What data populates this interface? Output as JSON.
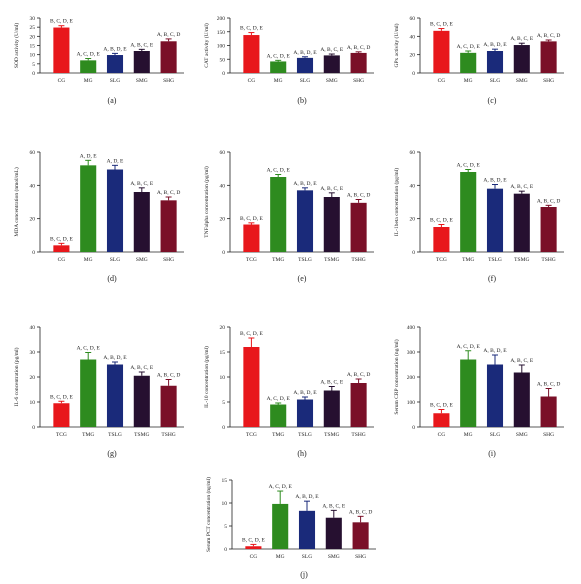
{
  "colors": {
    "CG": "#e8171b",
    "MG": "#2e8b1f",
    "SLG": "#1a2a7a",
    "SMG": "#261030",
    "SHG": "#7a1028"
  },
  "chart_data": [
    {
      "id": "a",
      "type": "bar",
      "panel_label": "(a)",
      "ylabel": "SOD activity (U/ml)",
      "ylim": [
        0,
        30
      ],
      "ticks": [
        0,
        5,
        10,
        15,
        20,
        25,
        30
      ],
      "categories": [
        "CG",
        "MG",
        "SLG",
        "SMG",
        "SHG"
      ],
      "values": [
        24.8,
        6.9,
        9.8,
        12.0,
        17.3
      ],
      "errors": [
        1.0,
        1.0,
        0.9,
        0.9,
        1.3
      ],
      "annotations": [
        "B, C, D, E",
        "A, C, D, E",
        "A, B, D, E",
        "A, B, C, E",
        "A, B, C, D"
      ]
    },
    {
      "id": "b",
      "type": "bar",
      "panel_label": "(b)",
      "ylabel": "CAT activity (U/ml)",
      "ylim": [
        0,
        200
      ],
      "ticks": [
        0,
        50,
        100,
        150,
        200
      ],
      "categories": [
        "CG",
        "MG",
        "SLG",
        "SMG",
        "SHG"
      ],
      "values": [
        138,
        42,
        55,
        64,
        73
      ],
      "errors": [
        9,
        4,
        4,
        5,
        4
      ],
      "annotations": [
        "B, C, D, E",
        "A, C, D, E",
        "A, B, D, E",
        "A, B, C, E",
        "A, B, C, D"
      ]
    },
    {
      "id": "c",
      "type": "bar",
      "panel_label": "(c)",
      "ylabel": "GPx activity (U/ml)",
      "ylim": [
        0,
        60
      ],
      "ticks": [
        0,
        20,
        40,
        60
      ],
      "categories": [
        "CG",
        "MG",
        "SLG",
        "SMG",
        "SHG"
      ],
      "values": [
        46,
        22,
        24,
        30.5,
        34.5
      ],
      "errors": [
        2.5,
        2,
        2,
        2,
        1.5
      ],
      "annotations": [
        "B, C, D, E",
        "A, C, D, E",
        "A, B, D, E",
        "A, B, C, E",
        "A, B, C, D"
      ]
    },
    {
      "id": "d",
      "type": "bar",
      "panel_label": "(d)",
      "ylabel": "MDA concentration (nmol/mL)",
      "ylim": [
        0,
        60
      ],
      "ticks": [
        0,
        20,
        40,
        60
      ],
      "categories": [
        "CG",
        "MG",
        "SLG",
        "SMG",
        "SHG"
      ],
      "values": [
        4,
        52,
        49.5,
        36,
        31
      ],
      "errors": [
        1.2,
        3,
        2.5,
        2.5,
        2
      ],
      "annotations": [
        "B, C, D, E",
        "A, D, E",
        "A, D, E",
        "A, B, C, E",
        "A, B, C, D"
      ]
    },
    {
      "id": "e",
      "type": "bar",
      "panel_label": "(e)",
      "ylabel": "TNFalpha concentration (pg/ml)",
      "ylim": [
        0,
        60
      ],
      "ticks": [
        0,
        20,
        40,
        60
      ],
      "categories": [
        "TCG",
        "TMG",
        "TSLG",
        "TSMG",
        "TSHG"
      ],
      "values": [
        16.5,
        45,
        37,
        33,
        29.5
      ],
      "errors": [
        1,
        1.5,
        1.5,
        2.5,
        2
      ],
      "annotations": [
        "B, C, D, E",
        "A, C, D, E",
        "A, B, D, E",
        "A, B, C, E",
        "A, B, C, D"
      ]
    },
    {
      "id": "f",
      "type": "bar",
      "panel_label": "(f)",
      "ylabel": "IL-1beta concentration (pg/ml)",
      "ylim": [
        0,
        60
      ],
      "ticks": [
        0,
        20,
        40,
        60
      ],
      "categories": [
        "TCG",
        "TMG",
        "TSLG",
        "TSMG",
        "TSHG"
      ],
      "values": [
        15,
        48,
        38,
        35,
        27
      ],
      "errors": [
        1.5,
        1.5,
        2.5,
        1.5,
        1
      ],
      "annotations": [
        "B, C, D, E",
        "A, C, D, E",
        "A, B, D, E",
        "A, B, C, E",
        "A, B, C, D"
      ]
    },
    {
      "id": "g",
      "type": "bar",
      "panel_label": "(g)",
      "ylabel": "IL-6 concentration (pg/ml)",
      "ylim": [
        0,
        40
      ],
      "ticks": [
        0,
        10,
        20,
        30,
        40
      ],
      "categories": [
        "TCG",
        "TMG",
        "TSLG",
        "TSMG",
        "TSHG"
      ],
      "values": [
        9.5,
        27,
        25,
        20.5,
        16.5
      ],
      "errors": [
        0.8,
        2.8,
        1,
        1.5,
        2.5
      ],
      "annotations": [
        "B, C, D, E",
        "A, C, D, E",
        "A, B, D, E",
        "A, B, C, E",
        "A, B, C, D"
      ]
    },
    {
      "id": "h",
      "type": "bar",
      "panel_label": "(h)",
      "ylabel": "IL-10 concentration (pg/ml)",
      "ylim": [
        0,
        20
      ],
      "ticks": [
        0,
        5,
        10,
        15,
        20
      ],
      "categories": [
        "TCG",
        "TMG",
        "TSLG",
        "TSMG",
        "TSHG"
      ],
      "values": [
        16,
        4.5,
        5.5,
        7.3,
        8.8
      ],
      "errors": [
        1.8,
        0.3,
        0.5,
        0.8,
        0.8
      ],
      "annotations": [
        "B, C, D, E",
        "A, C, D, E",
        "A, B, D, E",
        "A, B, C, E",
        "A, B, C, D"
      ]
    },
    {
      "id": "i",
      "type": "bar",
      "panel_label": "(i)",
      "ylabel": "Serum CRP concentration (ng/ml)",
      "ylim": [
        0,
        400
      ],
      "ticks": [
        0,
        100,
        200,
        300,
        400
      ],
      "categories": [
        "CG",
        "MG",
        "SLG",
        "SMG",
        "SHG"
      ],
      "values": [
        55,
        270,
        250,
        218,
        122
      ],
      "errors": [
        15,
        35,
        38,
        30,
        32
      ],
      "annotations": [
        "B, C, D, E",
        "A, C, D, E",
        "A, B, D, E",
        "A, B, C, E",
        "A, B, C, D"
      ]
    },
    {
      "id": "j",
      "type": "bar",
      "panel_label": "(j)",
      "ylabel": "Serum PCT concentration (ng/ml)",
      "ylim": [
        0,
        15
      ],
      "ticks": [
        0,
        5,
        10,
        15
      ],
      "categories": [
        "CG",
        "MG",
        "SLG",
        "SMG",
        "SHG"
      ],
      "values": [
        0.6,
        9.8,
        8.3,
        6.8,
        5.8
      ],
      "errors": [
        0.4,
        2.8,
        2.1,
        1.6,
        1.3
      ],
      "annotations": [
        "B, C, D, E",
        "A, C, D, E",
        "A, B, D, E",
        "A, B, C, E",
        "A, B, C, D"
      ]
    }
  ]
}
